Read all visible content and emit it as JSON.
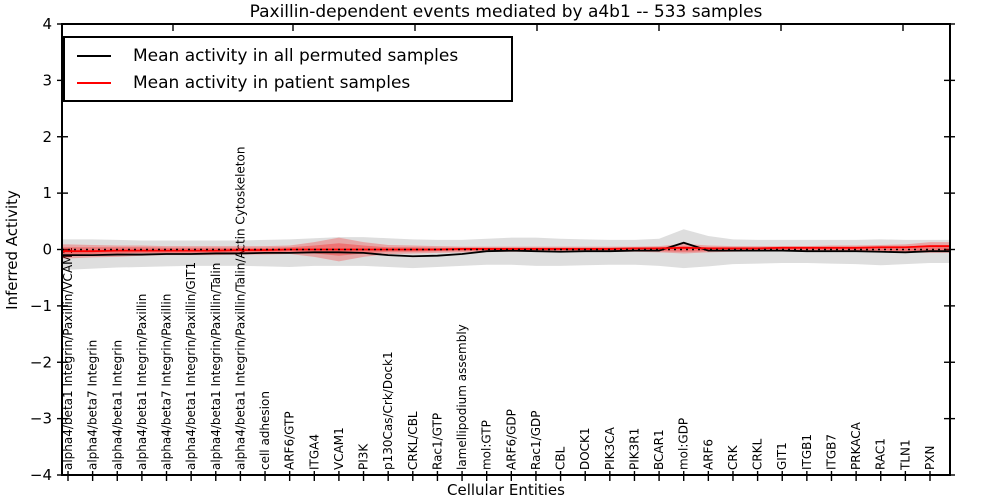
{
  "chart_data": {
    "type": "line",
    "title": "Paxillin-dependent events mediated by a4b1 -- 533 samples",
    "xlabel": "Cellular Entities",
    "ylabel": "Inferred Activity",
    "ylim": [
      -4,
      4
    ],
    "grid": false,
    "legend_position": "upper-left",
    "yticks": [
      {
        "label": "4",
        "value": 4
      },
      {
        "label": "3",
        "value": 3
      },
      {
        "label": "2",
        "value": 2
      },
      {
        "label": "1",
        "value": 1
      },
      {
        "label": "0",
        "value": 0
      },
      {
        "label": "−1",
        "value": -1
      },
      {
        "label": "−2",
        "value": -2
      },
      {
        "label": "−3",
        "value": -3
      },
      {
        "label": "−4",
        "value": -4
      }
    ],
    "categories": [
      "alpha4/beta1 Integrin/Paxillin/VCAM1",
      "alpha4/beta7 Integrin",
      "alpha4/beta1 Integrin",
      "alpha4/beta1 Integrin/Paxillin",
      "alpha4/beta7 Integrin/Paxillin",
      "alpha4/beta1 Integrin/Paxillin/GIT1",
      "alpha4/beta1 Integrin/Paxillin/Talin",
      "alpha4/beta1 Integrin/Paxillin/Talin/Actin Cytoskeleton",
      "cell adhesion",
      "ARF6/GTP",
      "ITGA4",
      "VCAM1",
      "PI3K",
      "p130Cas/Crk/Dock1",
      "CRKL/CBL",
      "Rac1/GTP",
      "lamellipodium assembly",
      "mol:GTP",
      "ARF6/GDP",
      "Rac1/GDP",
      "CBL",
      "DOCK1",
      "PIK3CA",
      "PIK3R1",
      "BCAR1",
      "mol:GDP",
      "ARF6",
      "CRK",
      "CRKL",
      "GIT1",
      "ITGB1",
      "ITGB7",
      "PRKACA",
      "RAC1",
      "TLN1",
      "PXN"
    ],
    "series": [
      {
        "name": "Mean activity in all permuted samples",
        "color": "#000000",
        "style": "solid",
        "values": [
          -0.1,
          -0.1,
          -0.09,
          -0.09,
          -0.08,
          -0.08,
          -0.07,
          -0.07,
          -0.06,
          -0.06,
          -0.05,
          -0.05,
          -0.06,
          -0.1,
          -0.12,
          -0.11,
          -0.08,
          -0.03,
          -0.02,
          -0.03,
          -0.04,
          -0.03,
          -0.03,
          -0.02,
          -0.02,
          0.12,
          -0.02,
          -0.02,
          -0.02,
          -0.02,
          -0.03,
          -0.03,
          -0.03,
          -0.04,
          -0.05,
          -0.03
        ]
      },
      {
        "name": "Mean activity in patient samples",
        "color": "#ff0000",
        "style": "solid",
        "values": [
          -0.03,
          -0.03,
          -0.02,
          -0.02,
          -0.02,
          -0.02,
          -0.02,
          -0.01,
          -0.01,
          0.0,
          0.0,
          0.0,
          0.0,
          0.0,
          0.0,
          0.0,
          0.01,
          0.01,
          0.01,
          0.01,
          0.01,
          0.01,
          0.01,
          0.02,
          0.02,
          0.03,
          0.02,
          0.02,
          0.02,
          0.03,
          0.03,
          0.03,
          0.03,
          0.04,
          0.04,
          0.06
        ]
      }
    ],
    "bands": [
      {
        "name": "permuted-std-band",
        "color": "rgba(0,0,0,0.13)",
        "upper": [
          0.18,
          0.18,
          0.17,
          0.16,
          0.16,
          0.16,
          0.16,
          0.16,
          0.17,
          0.18,
          0.2,
          0.22,
          0.22,
          0.2,
          0.18,
          0.17,
          0.17,
          0.19,
          0.21,
          0.21,
          0.19,
          0.18,
          0.17,
          0.17,
          0.19,
          0.36,
          0.24,
          0.18,
          0.17,
          0.17,
          0.17,
          0.17,
          0.17,
          0.18,
          0.17,
          0.17
        ],
        "lower": [
          -0.36,
          -0.34,
          -0.32,
          -0.31,
          -0.3,
          -0.29,
          -0.29,
          -0.29,
          -0.3,
          -0.31,
          -0.29,
          -0.29,
          -0.29,
          -0.31,
          -0.33,
          -0.31,
          -0.29,
          -0.27,
          -0.27,
          -0.29,
          -0.29,
          -0.28,
          -0.27,
          -0.27,
          -0.29,
          -0.33,
          -0.3,
          -0.26,
          -0.25,
          -0.24,
          -0.24,
          -0.25,
          -0.26,
          -0.28,
          -0.26,
          -0.24
        ]
      },
      {
        "name": "patient-std-outer-band",
        "color": "rgba(255,0,0,0.25)",
        "upper": [
          0.09,
          0.08,
          0.07,
          0.07,
          0.06,
          0.06,
          0.06,
          0.06,
          0.06,
          0.07,
          0.13,
          0.21,
          0.13,
          0.08,
          0.07,
          0.06,
          0.05,
          0.05,
          0.05,
          0.05,
          0.05,
          0.05,
          0.05,
          0.05,
          0.06,
          0.1,
          0.07,
          0.06,
          0.06,
          0.06,
          0.06,
          0.07,
          0.07,
          0.08,
          0.09,
          0.13
        ],
        "lower": [
          -0.16,
          -0.14,
          -0.13,
          -0.11,
          -0.1,
          -0.1,
          -0.1,
          -0.09,
          -0.09,
          -0.08,
          -0.13,
          -0.21,
          -0.13,
          -0.08,
          -0.07,
          -0.06,
          -0.05,
          -0.04,
          -0.04,
          -0.04,
          -0.04,
          -0.04,
          -0.04,
          -0.04,
          -0.05,
          -0.07,
          -0.05,
          -0.04,
          -0.03,
          -0.03,
          -0.03,
          -0.03,
          -0.03,
          -0.04,
          -0.05,
          -0.06
        ]
      },
      {
        "name": "patient-std-inner-band",
        "color": "rgba(255,0,0,0.30)",
        "upper": [
          0.04,
          0.04,
          0.04,
          0.04,
          0.03,
          0.03,
          0.03,
          0.03,
          0.03,
          0.04,
          0.07,
          0.11,
          0.07,
          0.04,
          0.04,
          0.03,
          0.03,
          0.03,
          0.03,
          0.03,
          0.03,
          0.03,
          0.03,
          0.03,
          0.04,
          0.06,
          0.04,
          0.04,
          0.04,
          0.04,
          0.04,
          0.04,
          0.04,
          0.05,
          0.05,
          0.08
        ],
        "lower": [
          -0.09,
          -0.08,
          -0.07,
          -0.06,
          -0.06,
          -0.06,
          -0.06,
          -0.05,
          -0.05,
          -0.04,
          -0.07,
          -0.11,
          -0.07,
          -0.04,
          -0.04,
          -0.03,
          -0.03,
          -0.02,
          -0.02,
          -0.02,
          -0.02,
          -0.02,
          -0.02,
          -0.02,
          -0.03,
          -0.04,
          -0.03,
          -0.02,
          -0.02,
          -0.01,
          -0.01,
          -0.01,
          -0.02,
          -0.02,
          -0.03,
          -0.04
        ]
      }
    ],
    "zero_line": {
      "value": 0,
      "style": "dotted",
      "color": "#000000"
    }
  },
  "colors": {
    "background": "#ffffff",
    "axis": "#000000",
    "permuted_line": "#000000",
    "patient_line": "#ff0000"
  }
}
